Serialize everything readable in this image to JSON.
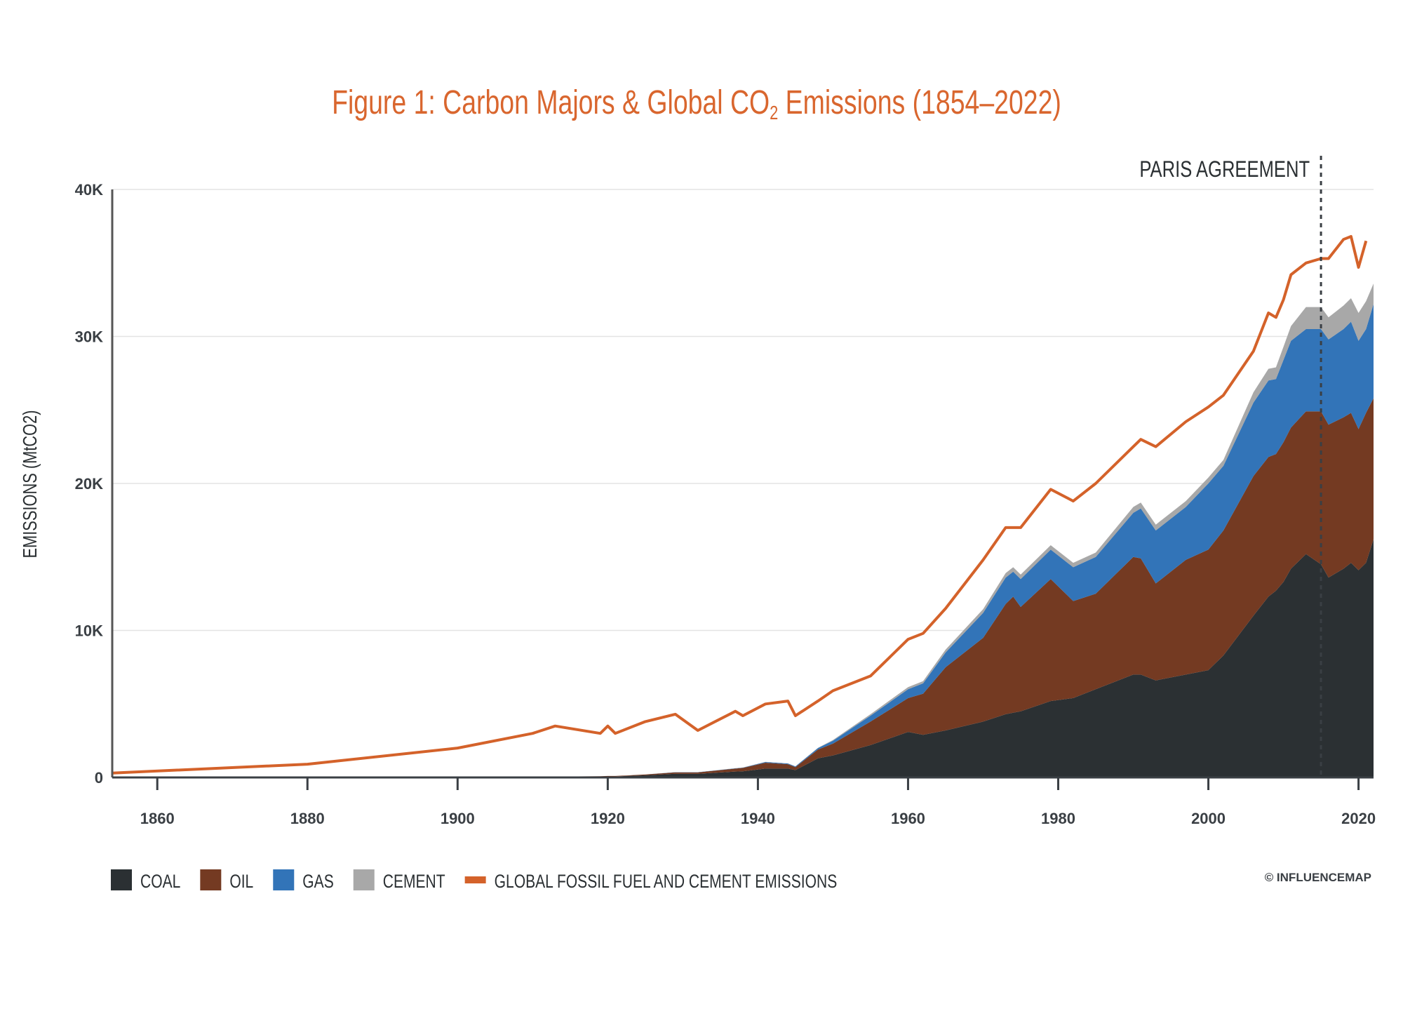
{
  "chart_data": {
    "type": "area",
    "stacked": true,
    "title": {
      "prefix": "Figure 1: Carbon Majors & Global CO",
      "subscript": "2",
      "suffix": " Emissions (1854–2022)"
    },
    "ylabel": "EMISSIONS (MtCO2)",
    "xlabel": "",
    "xlim": [
      1854,
      2022
    ],
    "ylim": [
      0,
      40000
    ],
    "grid": true,
    "x_ticks": [
      "1860",
      "1880",
      "1900",
      "1920",
      "1940",
      "1960",
      "1980",
      "2000",
      "2020"
    ],
    "y_ticks": [
      {
        "value": 0,
        "label": "0"
      },
      {
        "value": 10000,
        "label": "10K"
      },
      {
        "value": 20000,
        "label": "20K"
      },
      {
        "value": 30000,
        "label": "30K"
      },
      {
        "value": 40000,
        "label": "40K"
      }
    ],
    "annotation": {
      "label": "PARIS AGREEMENT",
      "x": 2015,
      "style": "dashed vertical line"
    },
    "legend_position": "bottom-left",
    "x": [
      1854,
      1880,
      1900,
      1910,
      1913,
      1919,
      1920,
      1921,
      1925,
      1929,
      1932,
      1937,
      1938,
      1941,
      1944,
      1945,
      1948,
      1950,
      1955,
      1960,
      1962,
      1965,
      1970,
      1973,
      1974,
      1975,
      1979,
      1982,
      1985,
      1990,
      1991,
      1993,
      1997,
      2000,
      2002,
      2006,
      2008,
      2009,
      2010,
      2011,
      2013,
      2015,
      2016,
      2018,
      2019,
      2020,
      2021,
      2022
    ],
    "series": [
      {
        "name": "COAL",
        "color": "#2b3033",
        "values": [
          0,
          0,
          20,
          40,
          50,
          60,
          70,
          70,
          150,
          250,
          250,
          400,
          420,
          600,
          600,
          500,
          1300,
          1500,
          2200,
          3100,
          2900,
          3200,
          3800,
          4300,
          4400,
          4500,
          5200,
          5400,
          6000,
          7000,
          7000,
          6600,
          7000,
          7300,
          8300,
          11000,
          12300,
          12700,
          13300,
          14200,
          15200,
          14500,
          13600,
          14200,
          14600,
          14100,
          14600,
          16200
        ]
      },
      {
        "name": "OIL",
        "color": "#743a22",
        "values": [
          0,
          0,
          0,
          10,
          10,
          20,
          30,
          30,
          50,
          100,
          100,
          200,
          230,
          400,
          300,
          200,
          600,
          800,
          1600,
          2300,
          2800,
          4300,
          5700,
          7500,
          7900,
          7100,
          8300,
          6600,
          6500,
          8000,
          7900,
          6600,
          7800,
          8200,
          8500,
          9500,
          9500,
          9300,
          9500,
          9600,
          9700,
          10400,
          10400,
          10300,
          10200,
          9600,
          10200,
          9600
        ]
      },
      {
        "name": "GAS",
        "color": "#3274b8",
        "values": [
          0,
          0,
          0,
          0,
          0,
          0,
          0,
          0,
          0,
          10,
          10,
          20,
          20,
          50,
          50,
          50,
          100,
          200,
          400,
          600,
          700,
          1000,
          1700,
          1800,
          1700,
          1900,
          2000,
          2300,
          2500,
          3000,
          3400,
          3600,
          3600,
          4500,
          4400,
          5000,
          5200,
          5100,
          5600,
          5900,
          5600,
          5600,
          5800,
          6000,
          6200,
          6000,
          5700,
          6400
        ]
      },
      {
        "name": "CEMENT",
        "color": "#a8a8a8",
        "values": [
          0,
          0,
          0,
          0,
          0,
          0,
          0,
          0,
          0,
          0,
          0,
          10,
          10,
          10,
          10,
          10,
          20,
          50,
          100,
          150,
          150,
          200,
          250,
          300,
          300,
          300,
          300,
          300,
          300,
          400,
          400,
          400,
          400,
          400,
          400,
          700,
          800,
          800,
          900,
          1000,
          1500,
          1500,
          1500,
          1600,
          1600,
          1900,
          1900,
          1400
        ]
      }
    ],
    "line_series": {
      "name": "GLOBAL FOSSIL FUEL AND CEMENT EMISSIONS",
      "color": "#d4622a",
      "values": [
        300,
        900,
        2000,
        3000,
        3500,
        3000,
        3500,
        3000,
        3800,
        4300,
        3200,
        4500,
        4200,
        5000,
        5200,
        4200,
        5200,
        5900,
        6900,
        9400,
        9800,
        11500,
        14800,
        17000,
        17000,
        17000,
        19600,
        18800,
        20000,
        22500,
        23000,
        22500,
        24200,
        25200,
        26000,
        29000,
        31600,
        31300,
        32500,
        34200,
        35000,
        35300,
        35300,
        36600,
        36800,
        34700,
        36500,
        null
      ]
    }
  },
  "credit": "© INFLUENCEMAP",
  "colors": {
    "title": "#d9662e",
    "axis": "#3a3f44",
    "grid": "#e3e3e3"
  }
}
